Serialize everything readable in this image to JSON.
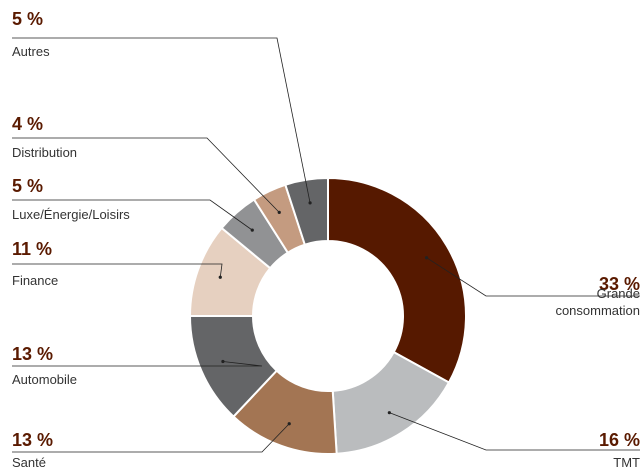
{
  "chart_data": {
    "type": "pie",
    "donut": true,
    "slices": [
      {
        "label": "Grande consommation",
        "label_lines": [
          "Grande",
          "consommation"
        ],
        "value": 33,
        "value_label": "33 %",
        "color": "#561900",
        "side": "right"
      },
      {
        "label": "TMT",
        "label_lines": [
          "TMT"
        ],
        "value": 16,
        "value_label": "16 %",
        "color": "#babcbe",
        "side": "right"
      },
      {
        "label": "Santé",
        "label_lines": [
          "Santé"
        ],
        "value": 13,
        "value_label": "13 %",
        "color": "#a37553",
        "side": "left"
      },
      {
        "label": "Automobile",
        "label_lines": [
          "Automobile"
        ],
        "value": 13,
        "value_label": "13 %",
        "color": "#646567",
        "side": "left"
      },
      {
        "label": "Finance",
        "label_lines": [
          "Finance"
        ],
        "value": 11,
        "value_label": "11 %",
        "color": "#e6d0c0",
        "side": "left"
      },
      {
        "label": "Luxe/Énergie/Loisirs",
        "label_lines": [
          "Luxe/Énergie/Loisirs"
        ],
        "value": 5,
        "value_label": "5 %",
        "color": "#919294",
        "side": "left"
      },
      {
        "label": "Distribution",
        "label_lines": [
          "Distribution"
        ],
        "value": 4,
        "value_label": "4 %",
        "color": "#c49b80",
        "side": "left"
      },
      {
        "label": "Autres",
        "label_lines": [
          "Autres"
        ],
        "value": 5,
        "value_label": "5 %",
        "color": "#646567",
        "side": "left"
      }
    ],
    "title": "",
    "legend": "none"
  }
}
